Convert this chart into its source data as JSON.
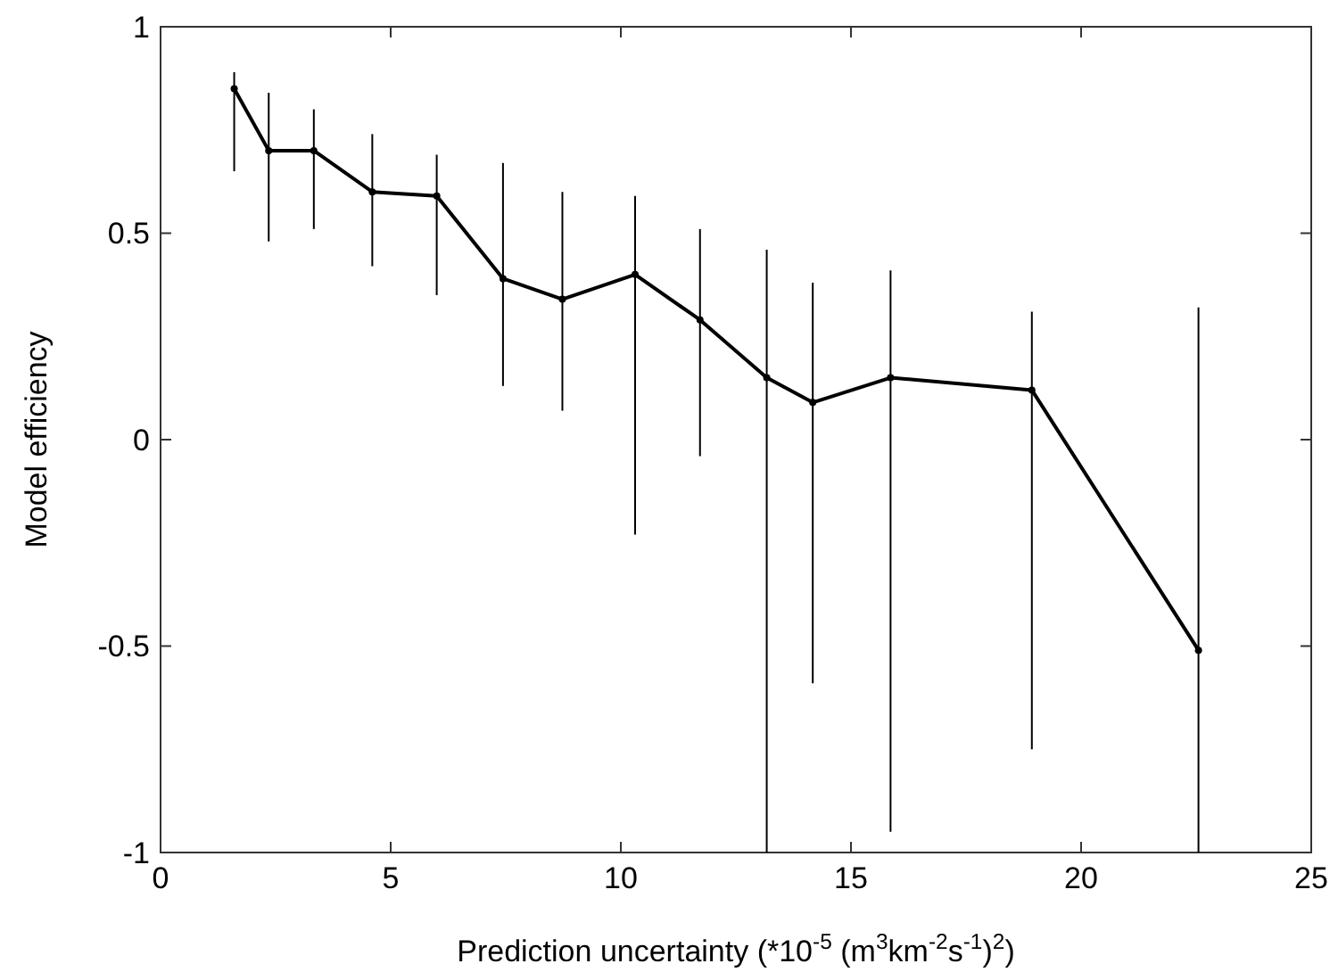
{
  "chart_data": {
    "type": "line",
    "xlabel": "Prediction uncertainty (*10$^{-5}$ (m$^{3}$km$^{-2}$s$^{-1}$)$^{2}$)",
    "ylabel": "Model efficiency",
    "xlim": [
      0,
      25
    ],
    "xticks": [
      0,
      5,
      10,
      15,
      20,
      25
    ],
    "ylim": [
      -1,
      1
    ],
    "yticks": [
      -1,
      -0.5,
      0,
      0.5,
      1
    ],
    "marker": "circle",
    "line_style": "solid",
    "x": [
      1.6,
      2.35,
      3.33,
      4.6,
      6.0,
      7.44,
      8.73,
      10.31,
      11.72,
      13.17,
      14.17,
      15.86,
      18.93,
      22.55
    ],
    "series": [
      {
        "color": "#000000",
        "values": [
          0.85,
          0.7,
          0.7,
          0.6,
          0.59,
          0.39,
          0.34,
          0.4,
          0.29,
          0.15,
          0.09,
          0.15,
          0.12,
          -0.51
        ],
        "errors": [
          [
            0.65,
            0.89
          ],
          [
            0.48,
            0.84
          ],
          [
            0.51,
            0.8
          ],
          [
            0.42,
            0.74
          ],
          [
            0.35,
            0.69
          ],
          [
            0.13,
            0.67
          ],
          [
            0.07,
            0.6
          ],
          [
            -0.23,
            0.59
          ],
          [
            -0.04,
            0.51
          ],
          [
            -1,
            0.46
          ],
          [
            -0.59,
            0.38
          ],
          [
            -0.95,
            0.41
          ],
          [
            -0.75,
            0.31
          ],
          [
            -1,
            0.32
          ]
        ]
      }
    ]
  }
}
